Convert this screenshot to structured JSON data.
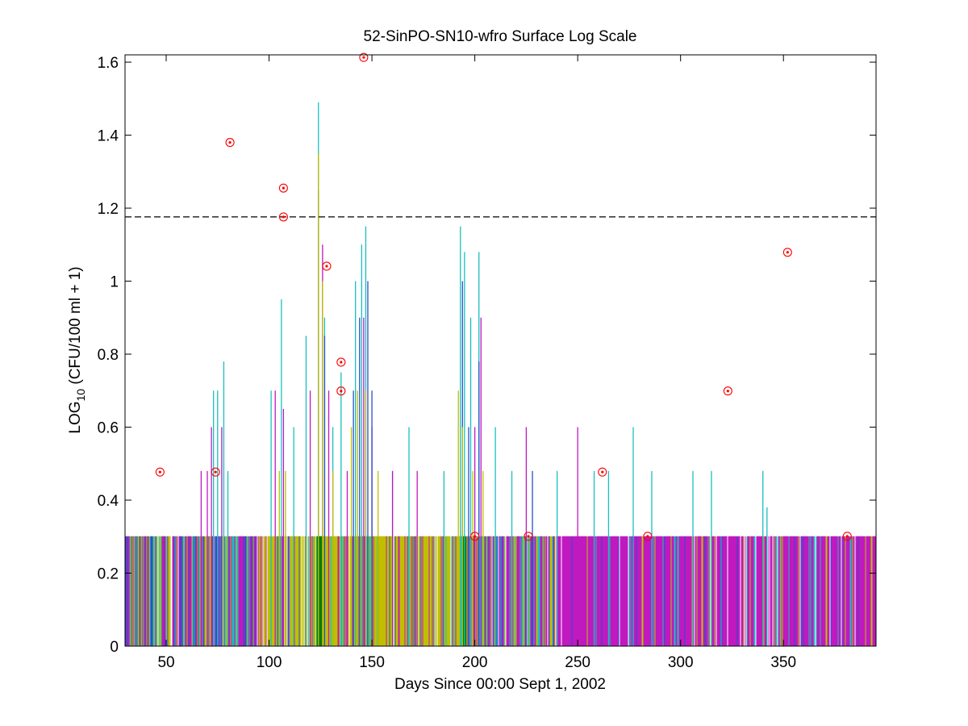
{
  "chart_data": {
    "type": "bar",
    "title": "52-SinPO-SN10-wfro Surface Log Scale",
    "xlabel": "Days Since 00:00 Sept 1, 2002",
    "ylabel": "LOG",
    "ylabel_sub": "10",
    "ylabel_rest": " (CFU/100 ml + 1)",
    "xlim": [
      30,
      395
    ],
    "ylim": [
      0,
      1.62
    ],
    "xticks": [
      50,
      100,
      150,
      200,
      250,
      300,
      350
    ],
    "yticks": [
      0,
      0.2,
      0.4,
      0.6,
      0.8,
      1,
      1.2,
      1.4,
      1.6
    ],
    "ytick_labels": [
      "0",
      "0.2",
      "0.4",
      "0.6",
      "0.8",
      "1",
      "1.2",
      "1.4",
      "1.6"
    ],
    "threshold": 1.176,
    "colors": {
      "cyan": "#19bfbf",
      "magenta": "#bf19bf",
      "olive": "#bfbf00",
      "blue": "#2a4fc8",
      "green": "#007f00",
      "marker": "#ff0000",
      "threshold": "#000000"
    },
    "baseline_level": 0.301,
    "series": [
      {
        "style": "bars",
        "color": "cyan",
        "points": [
          [
            73,
            0.7
          ],
          [
            75,
            0.7
          ],
          [
            78,
            0.78
          ],
          [
            80,
            0.48
          ],
          [
            101,
            0.7
          ],
          [
            106,
            0.95
          ],
          [
            112,
            0.6
          ],
          [
            118,
            0.85
          ],
          [
            124,
            1.49
          ],
          [
            127,
            0.9
          ],
          [
            131,
            0.6
          ],
          [
            135,
            0.75
          ],
          [
            142,
            1.0
          ],
          [
            145,
            1.1
          ],
          [
            147,
            1.15
          ],
          [
            160,
            0.48
          ],
          [
            168,
            0.6
          ],
          [
            185,
            0.48
          ],
          [
            193,
            1.15
          ],
          [
            195,
            1.08
          ],
          [
            198,
            0.9
          ],
          [
            202,
            1.08
          ],
          [
            210,
            0.6
          ],
          [
            218,
            0.48
          ],
          [
            240,
            0.48
          ],
          [
            258,
            0.48
          ],
          [
            265,
            0.48
          ],
          [
            277,
            0.6
          ],
          [
            286,
            0.48
          ],
          [
            306,
            0.48
          ],
          [
            315,
            0.48
          ],
          [
            340,
            0.48
          ],
          [
            342,
            0.38
          ]
        ]
      },
      {
        "style": "bars",
        "color": "magenta",
        "points": [
          [
            67,
            0.48
          ],
          [
            70,
            0.48
          ],
          [
            72,
            0.6
          ],
          [
            77,
            0.6
          ],
          [
            103,
            0.7
          ],
          [
            107,
            0.65
          ],
          [
            120,
            0.7
          ],
          [
            126,
            1.1
          ],
          [
            129,
            0.7
          ],
          [
            138,
            0.48
          ],
          [
            146,
            0.9
          ],
          [
            150,
            0.6
          ],
          [
            160,
            0.48
          ],
          [
            172,
            0.48
          ],
          [
            200,
            0.6
          ],
          [
            203,
            0.9
          ],
          [
            225,
            0.6
          ],
          [
            250,
            0.6
          ]
        ]
      },
      {
        "style": "bars",
        "color": "blue",
        "points": [
          [
            124,
            1.25
          ],
          [
            127,
            0.85
          ],
          [
            141,
            0.7
          ],
          [
            144,
            0.9
          ],
          [
            148,
            1.0
          ],
          [
            150,
            0.7
          ],
          [
            194,
            1.0
          ],
          [
            197,
            0.6
          ],
          [
            202,
            0.78
          ],
          [
            228,
            0.48
          ]
        ]
      },
      {
        "style": "bars",
        "color": "olive",
        "points": [
          [
            105,
            0.48
          ],
          [
            108,
            0.48
          ],
          [
            124,
            1.35
          ],
          [
            126,
            1.0
          ],
          [
            131,
            0.48
          ],
          [
            140,
            0.6
          ],
          [
            143,
            0.7
          ],
          [
            147,
            0.7
          ],
          [
            153,
            0.48
          ],
          [
            192,
            0.7
          ],
          [
            194,
            0.6
          ],
          [
            199,
            0.48
          ],
          [
            204,
            0.48
          ]
        ]
      },
      {
        "style": "markers",
        "color": "marker",
        "points": [
          [
            47,
            0.477
          ],
          [
            74,
            0.477
          ],
          [
            81,
            1.38
          ],
          [
            107,
            1.255
          ],
          [
            107,
            1.176
          ],
          [
            128,
            1.041
          ],
          [
            135,
            0.778
          ],
          [
            135,
            0.699
          ],
          [
            146,
            1.613
          ],
          [
            200,
            0.301
          ],
          [
            226,
            0.301
          ],
          [
            262,
            0.477
          ],
          [
            284,
            0.301
          ],
          [
            323,
            0.699
          ],
          [
            352,
            1.079
          ],
          [
            381,
            0.301
          ]
        ]
      }
    ]
  }
}
